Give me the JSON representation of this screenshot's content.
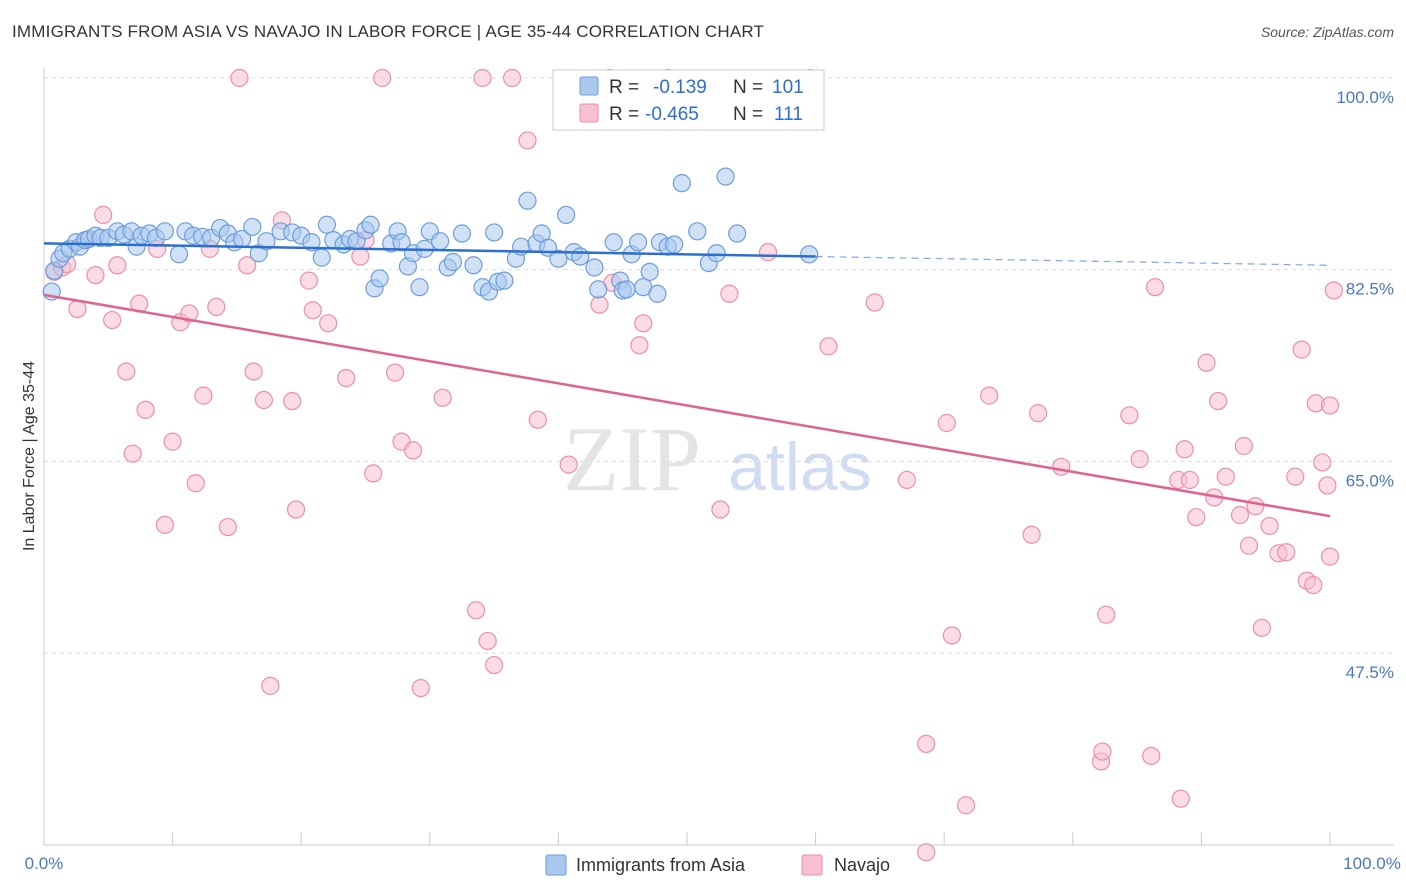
{
  "header": {
    "title": "IMMIGRANTS FROM ASIA VS NAVAJO IN LABOR FORCE | AGE 35-44 CORRELATION CHART",
    "source": "Source: ZipAtlas.com"
  },
  "watermark": {
    "zip": "ZIP",
    "atlas": "atlas"
  },
  "colors": {
    "blue_fill": "#a9c8ee",
    "blue_stroke": "#6d9edb",
    "blue_line": "#2a6fd1",
    "pink_fill": "#f7bfd0",
    "pink_stroke": "#ec8fab",
    "pink_line": "#e0628f",
    "tick_text": "#4a78c4",
    "grid": "#dddddd"
  },
  "legend": {
    "rows": [
      {
        "r_label": "R =",
        "r_value": "-0.139",
        "n_label": "N =",
        "n_value": "101"
      },
      {
        "r_label": "R =",
        "r_value": "-0.465",
        "n_label": "N =",
        "n_value": "111"
      }
    ]
  },
  "bottom_legend": {
    "series1": "Immigrants from Asia",
    "series2": "Navajo"
  },
  "chart_data": {
    "type": "scatter",
    "title": "IMMIGRANTS FROM ASIA VS NAVAJO IN LABOR FORCE | AGE 35-44 CORRELATION CHART",
    "xlabel": "",
    "ylabel": "In Labor Force | Age 35-44",
    "x_range": [
      0,
      100
    ],
    "y_range": [
      29,
      101.5
    ],
    "x_tick_labels": [
      "0.0%",
      "100.0%"
    ],
    "y_ticks": [
      {
        "value": 100.0,
        "label": "100.0%"
      },
      {
        "value": 82.5,
        "label": "82.5%"
      },
      {
        "value": 65.0,
        "label": "65.0%"
      },
      {
        "value": 47.5,
        "label": "47.5%"
      }
    ],
    "grid": true,
    "series": [
      {
        "name": "Immigrants from Asia",
        "R": -0.139,
        "N": 101,
        "trend": {
          "x0": 0,
          "y0": 84.9,
          "x1": 60,
          "y1": 83.7,
          "dashed_to_x": 100,
          "dashed_to_y": 82.9
        },
        "points": [
          [
            0.6,
            80.5
          ],
          [
            0.8,
            82.4
          ],
          [
            1.2,
            83.5
          ],
          [
            1.5,
            84.0
          ],
          [
            2.0,
            84.4
          ],
          [
            2.5,
            85.0
          ],
          [
            2.8,
            84.6
          ],
          [
            3.2,
            85.2
          ],
          [
            3.5,
            85.3
          ],
          [
            4.0,
            85.6
          ],
          [
            4.4,
            85.4
          ],
          [
            5.0,
            85.4
          ],
          [
            5.7,
            86.0
          ],
          [
            6.2,
            85.7
          ],
          [
            6.8,
            86.0
          ],
          [
            7.2,
            84.6
          ],
          [
            7.6,
            85.6
          ],
          [
            8.2,
            85.8
          ],
          [
            8.7,
            85.4
          ],
          [
            9.4,
            86.0
          ],
          [
            10.5,
            83.9
          ],
          [
            11.0,
            86.0
          ],
          [
            11.6,
            85.6
          ],
          [
            12.3,
            85.5
          ],
          [
            13.0,
            85.4
          ],
          [
            13.7,
            86.3
          ],
          [
            14.3,
            85.8
          ],
          [
            14.8,
            85.0
          ],
          [
            15.4,
            85.3
          ],
          [
            16.2,
            86.4
          ],
          [
            16.7,
            84.0
          ],
          [
            17.3,
            85.1
          ],
          [
            18.4,
            86.0
          ],
          [
            19.3,
            85.9
          ],
          [
            20.0,
            85.6
          ],
          [
            20.8,
            85.0
          ],
          [
            21.6,
            83.6
          ],
          [
            22.0,
            86.6
          ],
          [
            22.5,
            85.2
          ],
          [
            23.3,
            84.8
          ],
          [
            23.8,
            85.3
          ],
          [
            24.3,
            85.1
          ],
          [
            25.0,
            86.1
          ],
          [
            25.4,
            86.6
          ],
          [
            25.7,
            80.8
          ],
          [
            26.1,
            81.7
          ],
          [
            27.0,
            84.9
          ],
          [
            27.5,
            86.0
          ],
          [
            27.8,
            85.0
          ],
          [
            28.3,
            82.8
          ],
          [
            28.7,
            84.0
          ],
          [
            29.2,
            80.9
          ],
          [
            29.6,
            84.4
          ],
          [
            30.0,
            86.0
          ],
          [
            30.8,
            85.1
          ],
          [
            31.4,
            82.7
          ],
          [
            31.8,
            83.2
          ],
          [
            32.5,
            85.8
          ],
          [
            33.4,
            82.9
          ],
          [
            34.1,
            80.9
          ],
          [
            34.6,
            80.5
          ],
          [
            35.0,
            85.9
          ],
          [
            35.3,
            81.4
          ],
          [
            35.8,
            81.5
          ],
          [
            36.7,
            83.5
          ],
          [
            37.1,
            84.6
          ],
          [
            37.6,
            88.8
          ],
          [
            38.3,
            84.9
          ],
          [
            38.7,
            85.8
          ],
          [
            39.2,
            84.5
          ],
          [
            40.0,
            83.5
          ],
          [
            40.6,
            87.5
          ],
          [
            41.2,
            84.1
          ],
          [
            41.7,
            83.7
          ],
          [
            42.8,
            82.7
          ],
          [
            43.1,
            80.7
          ],
          [
            44.3,
            85.0
          ],
          [
            44.8,
            81.5
          ],
          [
            45.0,
            80.6
          ],
          [
            45.3,
            80.7
          ],
          [
            45.7,
            83.9
          ],
          [
            46.2,
            85.0
          ],
          [
            46.6,
            80.9
          ],
          [
            47.1,
            82.3
          ],
          [
            47.7,
            80.3
          ],
          [
            47.9,
            85.0
          ],
          [
            48.5,
            84.6
          ],
          [
            49.0,
            84.8
          ],
          [
            49.6,
            90.4
          ],
          [
            50.8,
            86.0
          ],
          [
            51.7,
            83.1
          ],
          [
            52.3,
            84.0
          ],
          [
            53.0,
            91.0
          ],
          [
            53.9,
            85.8
          ],
          [
            59.5,
            83.9
          ]
        ]
      },
      {
        "name": "Navajo",
        "R": -0.465,
        "N": 111,
        "trend": {
          "x0": 0,
          "y0": 80.2,
          "x1": 100,
          "y1": 60.0
        },
        "points": [
          [
            0.8,
            82.3
          ],
          [
            1.4,
            82.7
          ],
          [
            1.8,
            83.0
          ],
          [
            2.6,
            78.9
          ],
          [
            3.3,
            85.2
          ],
          [
            4.0,
            82.0
          ],
          [
            4.6,
            87.5
          ],
          [
            5.3,
            77.9
          ],
          [
            5.7,
            82.9
          ],
          [
            6.4,
            73.2
          ],
          [
            6.9,
            65.7
          ],
          [
            7.4,
            79.4
          ],
          [
            7.9,
            69.7
          ],
          [
            8.8,
            84.4
          ],
          [
            9.4,
            59.2
          ],
          [
            10.0,
            66.8
          ],
          [
            10.6,
            77.7
          ],
          [
            11.3,
            78.5
          ],
          [
            11.8,
            63.0
          ],
          [
            12.4,
            71.0
          ],
          [
            12.9,
            84.4
          ],
          [
            13.4,
            79.1
          ],
          [
            14.3,
            59.0
          ],
          [
            15.2,
            100.0
          ],
          [
            15.8,
            82.9
          ],
          [
            16.3,
            73.2
          ],
          [
            17.1,
            70.6
          ],
          [
            17.6,
            44.5
          ],
          [
            18.5,
            87.0
          ],
          [
            19.3,
            70.5
          ],
          [
            19.6,
            60.6
          ],
          [
            20.6,
            81.5
          ],
          [
            20.9,
            78.8
          ],
          [
            22.1,
            77.6
          ],
          [
            23.5,
            72.6
          ],
          [
            25.0,
            85.2
          ],
          [
            24.6,
            83.7
          ],
          [
            25.6,
            63.9
          ],
          [
            26.3,
            100.0
          ],
          [
            27.3,
            73.1
          ],
          [
            27.8,
            66.8
          ],
          [
            28.7,
            66.0
          ],
          [
            29.3,
            44.3
          ],
          [
            31.0,
            70.8
          ],
          [
            33.6,
            51.4
          ],
          [
            34.5,
            48.6
          ],
          [
            35.0,
            46.4
          ],
          [
            34.1,
            100.0
          ],
          [
            36.4,
            100.0
          ],
          [
            37.6,
            94.3
          ],
          [
            38.4,
            68.8
          ],
          [
            40.8,
            64.7
          ],
          [
            43.2,
            79.3
          ],
          [
            44.0,
            100.0
          ],
          [
            44.2,
            81.3
          ],
          [
            46.3,
            75.6
          ],
          [
            46.6,
            77.6
          ],
          [
            48.5,
            100.0
          ],
          [
            52.6,
            60.6
          ],
          [
            53.3,
            80.3
          ],
          [
            56.3,
            84.1
          ],
          [
            59.6,
            100.0
          ],
          [
            61.0,
            75.5
          ],
          [
            64.6,
            79.5
          ],
          [
            67.1,
            63.3
          ],
          [
            68.6,
            39.2
          ],
          [
            68.6,
            29.3
          ],
          [
            70.2,
            68.5
          ],
          [
            70.6,
            49.1
          ],
          [
            71.7,
            33.6
          ],
          [
            73.5,
            71.0
          ],
          [
            76.8,
            58.3
          ],
          [
            77.3,
            69.4
          ],
          [
            79.1,
            64.5
          ],
          [
            82.2,
            37.6
          ],
          [
            82.6,
            51.0
          ],
          [
            82.3,
            38.5
          ],
          [
            84.4,
            69.2
          ],
          [
            85.2,
            65.2
          ],
          [
            86.1,
            38.1
          ],
          [
            86.4,
            80.9
          ],
          [
            88.2,
            63.3
          ],
          [
            88.4,
            34.2
          ],
          [
            88.7,
            66.1
          ],
          [
            89.1,
            63.3
          ],
          [
            89.6,
            59.9
          ],
          [
            90.4,
            74.0
          ],
          [
            91.0,
            61.7
          ],
          [
            91.3,
            70.5
          ],
          [
            91.9,
            63.6
          ],
          [
            93.0,
            60.1
          ],
          [
            93.3,
            66.4
          ],
          [
            94.2,
            60.9
          ],
          [
            94.7,
            49.8
          ],
          [
            95.3,
            59.1
          ],
          [
            96.0,
            56.6
          ],
          [
            96.6,
            56.7
          ],
          [
            97.3,
            63.6
          ],
          [
            97.8,
            75.2
          ],
          [
            98.2,
            54.1
          ],
          [
            98.7,
            53.7
          ],
          [
            98.9,
            70.3
          ],
          [
            99.4,
            64.9
          ],
          [
            99.8,
            62.8
          ],
          [
            100.0,
            56.3
          ],
          [
            100.0,
            70.1
          ],
          [
            100.3,
            80.6
          ],
          [
            93.7,
            57.3
          ]
        ]
      }
    ]
  }
}
